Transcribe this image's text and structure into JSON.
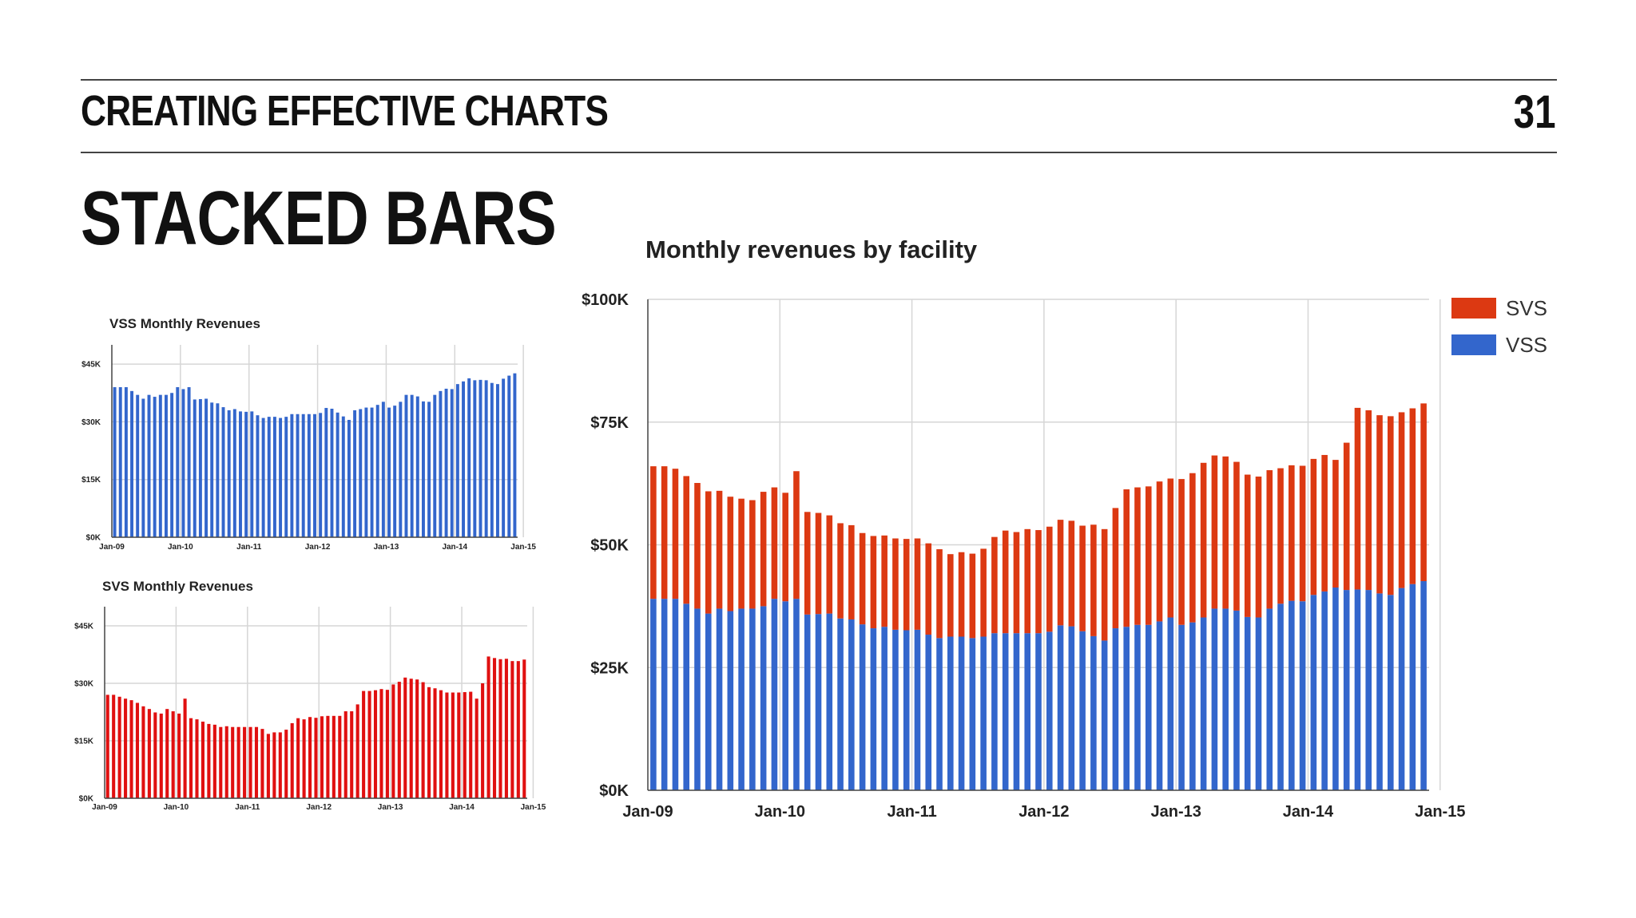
{
  "header": {
    "section_title": "CREATING EFFECTIVE CHARTS",
    "page_number": "31"
  },
  "slide_title": "STACKED BARS",
  "colors": {
    "vss": "#3366cc",
    "svs": "#dc3912",
    "svs_small": "#e01010"
  },
  "chart_data": [
    {
      "type": "bar",
      "title": "VSS Monthly Revenues",
      "xlabel": "",
      "ylabel": "",
      "ylim": [
        0,
        50000
      ],
      "yticks": [
        "$0K",
        "$15K",
        "$30K",
        "$45K"
      ],
      "ytick_values": [
        0,
        15000,
        30000,
        45000
      ],
      "xticks": [
        "Jan-09",
        "Jan-10",
        "Jan-11",
        "Jan-12",
        "Jan-13",
        "Jan-14",
        "Jan-15"
      ],
      "grid": true,
      "series": [
        {
          "values": [
            39000,
            39000,
            39000,
            38000,
            37000,
            36000,
            37000,
            36500,
            37000,
            37000,
            37500,
            39000,
            38500,
            39000,
            35800,
            35900,
            36000,
            35000,
            34800,
            33800,
            33000,
            33300,
            32700,
            32600,
            32700,
            31700,
            31000,
            31300,
            31300,
            31000,
            31300,
            32000,
            32000,
            32000,
            32000,
            32000,
            32300,
            33600,
            33400,
            32400,
            31400,
            30500,
            33000,
            33300,
            33700,
            33700,
            34400,
            35200,
            33700,
            34200,
            35200,
            37000,
            37000,
            36600,
            35300,
            35200,
            37000,
            38000,
            38600,
            38500,
            39800,
            40500,
            41300,
            40800,
            40900,
            40800,
            40100,
            39800,
            41200,
            42000,
            42600
          ]
        }
      ]
    },
    {
      "type": "bar",
      "title": "SVS Monthly Revenues",
      "xlabel": "",
      "ylabel": "",
      "ylim": [
        0,
        50000
      ],
      "yticks": [
        "$0K",
        "$15K",
        "$30K",
        "$45K"
      ],
      "ytick_values": [
        0,
        15000,
        30000,
        45000
      ],
      "xticks": [
        "Jan-09",
        "Jan-10",
        "Jan-11",
        "Jan-12",
        "Jan-13",
        "Jan-14",
        "Jan-15"
      ],
      "grid": true,
      "series": [
        {
          "values": [
            27000,
            27000,
            26500,
            26000,
            25600,
            24900,
            24000,
            23300,
            22400,
            22100,
            23300,
            22700,
            22100,
            26000,
            20900,
            20600,
            20000,
            19400,
            19200,
            18600,
            18800,
            18600,
            18600,
            18600,
            18600,
            18600,
            18100,
            16800,
            17200,
            17200,
            17900,
            19600,
            20900,
            20600,
            21200,
            21000,
            21400,
            21500,
            21500,
            21500,
            22700,
            22700,
            24500,
            28000,
            28000,
            28200,
            28500,
            28300,
            29700,
            30400,
            31500,
            31200,
            31000,
            30300,
            29000,
            28700,
            28200,
            27600,
            27600,
            27600,
            27700,
            27800,
            26000,
            30000,
            37000,
            36600,
            36300,
            36400,
            35800,
            35800,
            36200
          ]
        }
      ]
    },
    {
      "type": "bar",
      "stacked": true,
      "title": "Monthly revenues by facility",
      "xlabel": "",
      "ylabel": "",
      "ylim": [
        0,
        100000
      ],
      "yticks": [
        "$0K",
        "$25K",
        "$50K",
        "$75K",
        "$100K"
      ],
      "ytick_values": [
        0,
        25000,
        50000,
        75000,
        100000
      ],
      "xticks": [
        "Jan-09",
        "Jan-10",
        "Jan-11",
        "Jan-12",
        "Jan-13",
        "Jan-14",
        "Jan-15"
      ],
      "grid": true,
      "legend": "right",
      "series": [
        {
          "name": "VSS",
          "values": [
            39000,
            39000,
            39000,
            38000,
            37000,
            36000,
            37000,
            36500,
            37000,
            37000,
            37500,
            39000,
            38500,
            39000,
            35800,
            35900,
            36000,
            35000,
            34800,
            33800,
            33000,
            33300,
            32700,
            32600,
            32700,
            31700,
            31000,
            31300,
            31300,
            31000,
            31300,
            32000,
            32000,
            32000,
            32000,
            32000,
            32300,
            33600,
            33400,
            32400,
            31400,
            30500,
            33000,
            33300,
            33700,
            33700,
            34400,
            35200,
            33700,
            34200,
            35200,
            37000,
            37000,
            36600,
            35300,
            35200,
            37000,
            38000,
            38600,
            38500,
            39800,
            40500,
            41300,
            40800,
            40900,
            40800,
            40100,
            39800,
            41200,
            42000,
            42600
          ]
        },
        {
          "name": "SVS",
          "values": [
            27000,
            27000,
            26500,
            26000,
            25600,
            24900,
            24000,
            23300,
            22400,
            22100,
            23300,
            22700,
            22100,
            26000,
            20900,
            20600,
            20000,
            19400,
            19200,
            18600,
            18800,
            18600,
            18600,
            18600,
            18600,
            18600,
            18100,
            16800,
            17200,
            17200,
            17900,
            19600,
            20900,
            20600,
            21200,
            21000,
            21400,
            21500,
            21500,
            21500,
            22700,
            22700,
            24500,
            28000,
            28000,
            28200,
            28500,
            28300,
            29700,
            30400,
            31500,
            31200,
            31000,
            30300,
            29000,
            28700,
            28200,
            27600,
            27600,
            27600,
            27700,
            27800,
            26000,
            30000,
            37000,
            36600,
            36300,
            36400,
            35800,
            35800,
            36200
          ]
        }
      ]
    }
  ]
}
